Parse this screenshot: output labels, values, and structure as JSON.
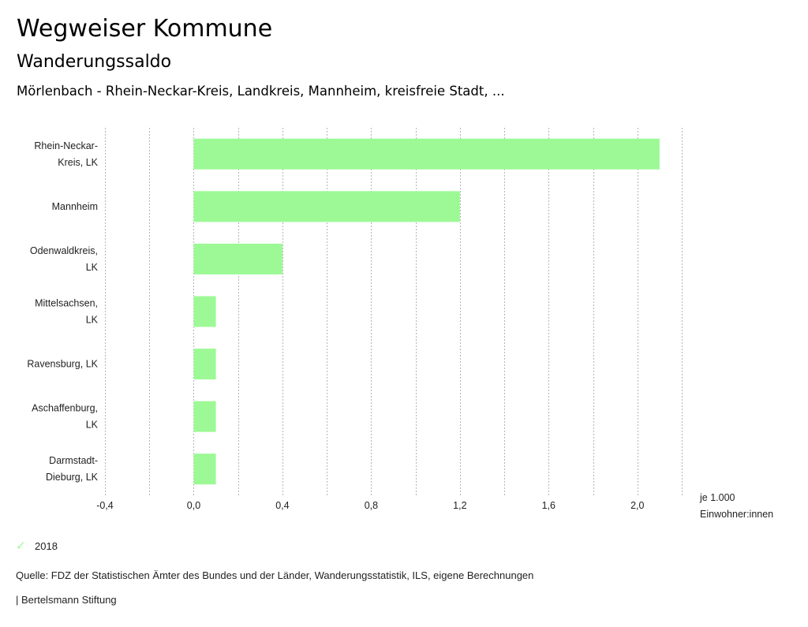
{
  "header": {
    "title": "Wegweiser Kommune",
    "subtitle": "Wanderungssaldo",
    "regions": "Mörlenbach - Rhein-Neckar-Kreis, Landkreis, Mannheim, kreisfreie Stadt, ..."
  },
  "chart_data": {
    "type": "bar",
    "orientation": "horizontal",
    "title": "Wanderungssaldo",
    "categories": [
      [
        "Rhein-Neckar-",
        "Kreis, LK"
      ],
      [
        "Mannheim"
      ],
      [
        "Odenwaldkreis,",
        "LK"
      ],
      [
        "Mittelsachsen,",
        "LK"
      ],
      [
        "Ravensburg, LK"
      ],
      [
        "Aschaffenburg,",
        "LK"
      ],
      [
        "Darmstadt-",
        "Dieburg, LK"
      ]
    ],
    "series": [
      {
        "name": "2018",
        "color": "#9cf995",
        "values": [
          2.1,
          1.2,
          0.4,
          0.1,
          0.1,
          0.1,
          0.1
        ]
      }
    ],
    "xlim": [
      -0.4,
      2.2
    ],
    "xticks": [
      -0.4,
      0.0,
      0.4,
      0.8,
      1.2,
      1.6,
      2.0
    ],
    "xtick_labels": [
      "-0,4",
      "0,0",
      "0,4",
      "0,8",
      "1,2",
      "1,6",
      "2,0"
    ],
    "gridlines": [
      -0.4,
      -0.2,
      0.0,
      0.2,
      0.4,
      0.6,
      0.8,
      1.0,
      1.2,
      1.4,
      1.6,
      1.8,
      2.0,
      2.2
    ],
    "grid": true,
    "xlabel": [
      "je 1.000",
      "Einwohner:innen"
    ],
    "ylabel": "",
    "legend_position": "bottom-left"
  },
  "legend": {
    "items": [
      {
        "label": "2018",
        "icon": "check-icon",
        "color": "#9cf995"
      }
    ]
  },
  "footer": {
    "source": "Quelle: FDZ der Statistischen Ämter des Bundes und der Länder, Wanderungsstatistik, ILS, eigene Berechnungen",
    "credit": "| Bertelsmann Stiftung"
  }
}
